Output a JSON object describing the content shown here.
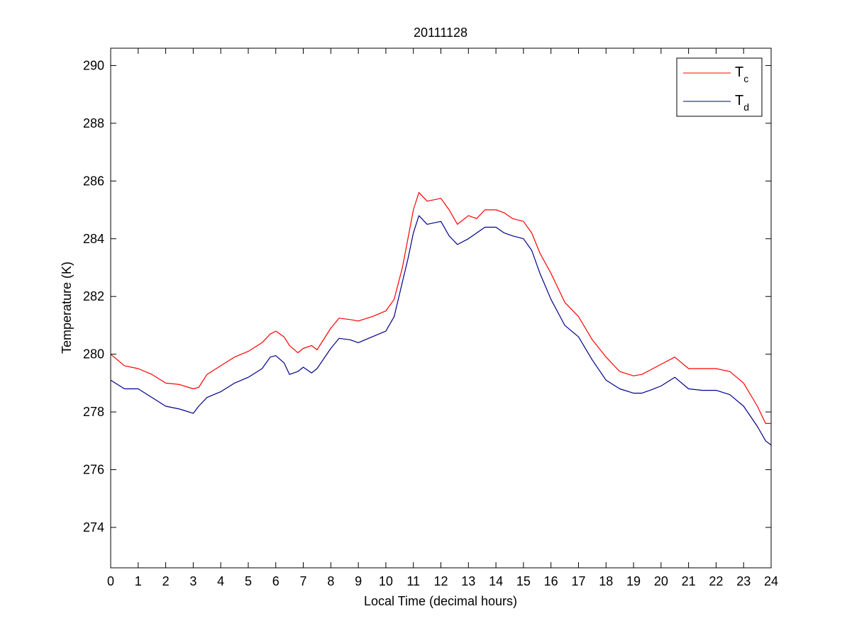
{
  "chart_data": {
    "type": "line",
    "title": "20111128",
    "xlabel": "Local Time (decimal hours)",
    "ylabel": "Temperature (K)",
    "xlim": [
      0,
      24
    ],
    "ylim": [
      272.6,
      290.6
    ],
    "xticks": [
      0,
      1,
      2,
      3,
      4,
      5,
      6,
      7,
      8,
      9,
      10,
      11,
      12,
      13,
      14,
      15,
      16,
      17,
      18,
      19,
      20,
      21,
      22,
      23,
      24
    ],
    "yticks": [
      274,
      276,
      278,
      280,
      282,
      284,
      286,
      288,
      290
    ],
    "grid": false,
    "legend_position": "top-right",
    "series": [
      {
        "name_main": "T",
        "name_sub": "c",
        "color": "#ff0000",
        "x": [
          0,
          0.5,
          1,
          1.5,
          2,
          2.5,
          3,
          3.2,
          3.5,
          4,
          4.5,
          5,
          5.5,
          5.8,
          6,
          6.3,
          6.5,
          6.8,
          7,
          7.3,
          7.5,
          8,
          8.3,
          8.7,
          9,
          9.5,
          10,
          10.3,
          10.6,
          10.8,
          11,
          11.2,
          11.5,
          12,
          12.3,
          12.6,
          13,
          13.3,
          13.6,
          14,
          14.3,
          14.6,
          15,
          15.3,
          15.6,
          16,
          16.5,
          17,
          17.5,
          18,
          18.5,
          19,
          19.3,
          19.6,
          20,
          20.5,
          21,
          21.5,
          22,
          22.5,
          23,
          23.5,
          23.8,
          24
        ],
        "y": [
          280.0,
          279.6,
          279.5,
          279.3,
          279.0,
          278.95,
          278.8,
          278.85,
          279.3,
          279.6,
          279.9,
          280.1,
          280.4,
          280.7,
          280.8,
          280.6,
          280.3,
          280.05,
          280.2,
          280.3,
          280.15,
          280.9,
          281.25,
          281.2,
          281.15,
          281.3,
          281.5,
          281.9,
          283.0,
          284.0,
          285.0,
          285.6,
          285.3,
          285.4,
          285.0,
          284.5,
          284.8,
          284.7,
          285.0,
          285.0,
          284.9,
          284.7,
          284.6,
          284.2,
          283.5,
          282.8,
          281.8,
          281.3,
          280.5,
          279.9,
          279.4,
          279.25,
          279.3,
          279.45,
          279.65,
          279.9,
          279.5,
          279.5,
          279.5,
          279.4,
          279.0,
          278.2,
          277.6,
          277.6
        ]
      },
      {
        "name_main": "T",
        "name_sub": "d",
        "color": "#00008b",
        "x": [
          0,
          0.5,
          1,
          1.5,
          2,
          2.5,
          3,
          3.2,
          3.5,
          4,
          4.5,
          5,
          5.5,
          5.8,
          6,
          6.3,
          6.5,
          6.8,
          7,
          7.3,
          7.5,
          8,
          8.3,
          8.7,
          9,
          9.5,
          10,
          10.3,
          10.6,
          10.8,
          11,
          11.2,
          11.5,
          12,
          12.3,
          12.6,
          13,
          13.3,
          13.6,
          14,
          14.3,
          14.6,
          15,
          15.3,
          15.6,
          16,
          16.5,
          17,
          17.5,
          18,
          18.5,
          19,
          19.3,
          19.6,
          20,
          20.5,
          21,
          21.5,
          22,
          22.5,
          23,
          23.5,
          23.8,
          24
        ],
        "y": [
          279.1,
          278.8,
          278.8,
          278.5,
          278.2,
          278.1,
          277.95,
          278.2,
          278.5,
          278.7,
          279.0,
          279.2,
          279.5,
          279.9,
          279.95,
          279.7,
          279.3,
          279.4,
          279.55,
          279.35,
          279.5,
          280.2,
          280.55,
          280.5,
          280.4,
          280.6,
          280.8,
          281.3,
          282.5,
          283.3,
          284.2,
          284.8,
          284.5,
          284.6,
          284.1,
          283.8,
          284.0,
          284.2,
          284.4,
          284.4,
          284.2,
          284.1,
          284.0,
          283.6,
          282.8,
          281.9,
          281.0,
          280.6,
          279.8,
          279.1,
          278.8,
          278.65,
          278.65,
          278.75,
          278.9,
          279.2,
          278.8,
          278.75,
          278.75,
          278.6,
          278.2,
          277.5,
          277.0,
          276.85
        ]
      }
    ]
  }
}
